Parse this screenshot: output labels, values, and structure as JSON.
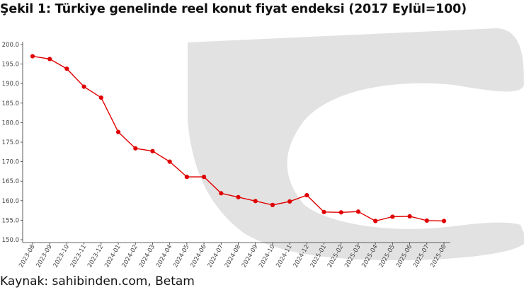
{
  "title": "Şekil 1: Türkiye genelinde reel konut fiyat endeksi (2017 Eylül=100)",
  "source": "Kaynak: sahibinden.com, Betam",
  "colors": {
    "series": "#e00000",
    "axis": "#333333",
    "background_art": "#d9d9d9"
  },
  "chart_data": {
    "type": "line",
    "title": "Şekil 1: Türkiye genelinde reel konut fiyat endeksi (2017 Eylül=100)",
    "xlabel": "",
    "ylabel": "",
    "x": [
      "2023-08",
      "2023-09",
      "2023-10",
      "2023-11",
      "2023-12",
      "2024-01",
      "2024-02",
      "2024-03",
      "2024-04",
      "2024-05",
      "2024-06",
      "2024-07",
      "2024-08",
      "2024-09",
      "2024-10",
      "2024-11",
      "2024-12",
      "2025-01",
      "2025-02",
      "2025-03",
      "2025-04",
      "2025-05",
      "2025-06",
      "2025-07",
      "2025-08"
    ],
    "series": [
      {
        "values": [
          197.0,
          196.3,
          193.8,
          189.2,
          186.4,
          177.6,
          173.4,
          172.7,
          170.0,
          166.1,
          166.1,
          161.9,
          160.9,
          159.9,
          158.9,
          159.8,
          161.4,
          157.1,
          157.0,
          157.2,
          154.8,
          155.9,
          156.0,
          154.9,
          154.8
        ]
      }
    ],
    "ylim": [
      150.0,
      200.0
    ],
    "yticks": [
      "150.0",
      "155.0",
      "160.0",
      "165.0",
      "170.0",
      "175.0",
      "180.0",
      "185.0",
      "190.0",
      "195.0",
      "200.0"
    ],
    "grid": false,
    "legend": "none"
  }
}
